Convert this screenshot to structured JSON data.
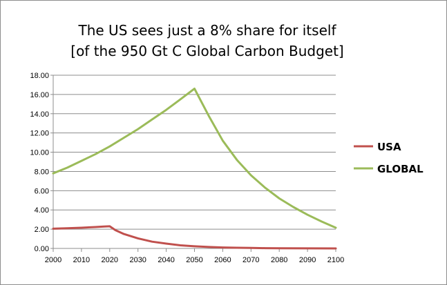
{
  "chart_data": {
    "type": "line",
    "title": [
      "The US sees just a 8% share for itself",
      "[of the 950 Gt C Global Carbon Budget]"
    ],
    "xlabel": "",
    "ylabel": "",
    "xlim": [
      2000,
      2100
    ],
    "ylim": [
      0,
      18
    ],
    "x_ticks": [
      "2000",
      "2010",
      "2020",
      "2030",
      "2040",
      "2050",
      "2060",
      "2070",
      "2080",
      "2090",
      "2100"
    ],
    "y_ticks": [
      "0.00",
      "2.00",
      "4.00",
      "6.00",
      "8.00",
      "10.00",
      "12.00",
      "14.00",
      "16.00",
      "18.00"
    ],
    "grid": true,
    "legend_position": "right",
    "series": [
      {
        "name": "USA",
        "color": "#c0504d",
        "x": [
          2000,
          2005,
          2010,
          2015,
          2018,
          2020,
          2022,
          2025,
          2030,
          2035,
          2040,
          2045,
          2050,
          2055,
          2060,
          2065,
          2070,
          2075,
          2080,
          2090,
          2100
        ],
        "y": [
          2.05,
          2.1,
          2.15,
          2.22,
          2.28,
          2.3,
          1.9,
          1.5,
          1.05,
          0.7,
          0.5,
          0.32,
          0.22,
          0.15,
          0.1,
          0.07,
          0.05,
          0.03,
          0.02,
          0.01,
          0.0
        ]
      },
      {
        "name": "GLOBAL",
        "color": "#9bbb59",
        "x": [
          2000,
          2005,
          2010,
          2015,
          2020,
          2025,
          2030,
          2035,
          2040,
          2045,
          2050,
          2055,
          2060,
          2065,
          2070,
          2075,
          2080,
          2085,
          2090,
          2095,
          2100
        ],
        "y": [
          7.8,
          8.4,
          9.1,
          9.8,
          10.6,
          11.5,
          12.4,
          13.4,
          14.4,
          15.5,
          16.6,
          13.8,
          11.2,
          9.2,
          7.6,
          6.3,
          5.2,
          4.3,
          3.5,
          2.8,
          2.15
        ]
      }
    ]
  }
}
